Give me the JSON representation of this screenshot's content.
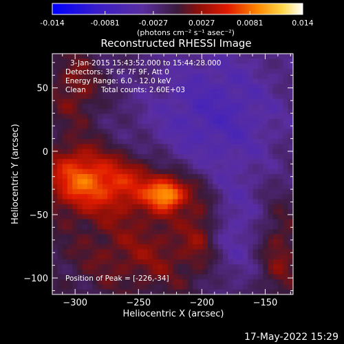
{
  "chart_data": {
    "type": "heatmap",
    "title": "Reconstructed RHESSI Image",
    "colorbar": {
      "min": -0.014,
      "max": 0.014,
      "ticks": [
        "-0.014",
        "-0.0081",
        "-0.0027",
        "0.0027",
        "0.0081",
        "0.014"
      ],
      "tick_values": [
        -0.014,
        -0.0081,
        -0.0027,
        0.0027,
        0.0081,
        0.014
      ],
      "label": "(photons cm⁻² s⁻¹ asec⁻²)",
      "colormap": "blue-purple-red-yellow-white"
    },
    "xlabel": "Heliocentric X (arcsec)",
    "ylabel": "Heliocentric Y (arcsec)",
    "xlim": [
      -318,
      -128
    ],
    "ylim": [
      -113,
      77
    ],
    "xticks": [
      -300,
      -250,
      -200,
      -150
    ],
    "yticks": [
      -100,
      -50,
      0,
      50
    ],
    "annotations": {
      "time_range": "3-Jan-2015 15:43:52.000 to 15:44:28.000",
      "detectors": "Detectors: 3F 6F 7F 9F, Att 0",
      "energy": "Energy Range: 6.0 - 12.0 keV",
      "method": "Clean",
      "counts": "Total counts: 2.60E+03",
      "peak": "Position of Peak = [-226,-34]"
    },
    "peak": {
      "x": -226,
      "y": -34,
      "value": 0.014
    },
    "sources": [
      {
        "x": -227,
        "y": -34,
        "sigma_x": 11,
        "sigma_y": 9,
        "amp": 0.0095
      },
      {
        "x": -265,
        "y": -26,
        "sigma_x": 28,
        "sigma_y": 16,
        "amp": 0.0065
      },
      {
        "x": -300,
        "y": -20,
        "sigma_x": 18,
        "sigma_y": 18,
        "amp": 0.006
      },
      {
        "x": -245,
        "y": -80,
        "sigma_x": 45,
        "sigma_y": 25,
        "amp": 0.0035
      },
      {
        "x": -200,
        "y": -55,
        "sigma_x": 10,
        "sigma_y": 25,
        "amp": 0.0035
      },
      {
        "x": -300,
        "y": 50,
        "sigma_x": 15,
        "sigma_y": 22,
        "amp": 0.0035
      },
      {
        "x": -140,
        "y": -80,
        "sigma_x": 12,
        "sigma_y": 30,
        "amp": 0.0035
      },
      {
        "x": -190,
        "y": 30,
        "sigma_x": 40,
        "sigma_y": 40,
        "amp": -0.0045
      },
      {
        "x": -175,
        "y": -70,
        "sigma_x": 20,
        "sigma_y": 30,
        "amp": -0.0035
      }
    ],
    "background": -0.0015,
    "grid": false
  },
  "footer": {
    "timestamp": "17-May-2022 15:29"
  }
}
